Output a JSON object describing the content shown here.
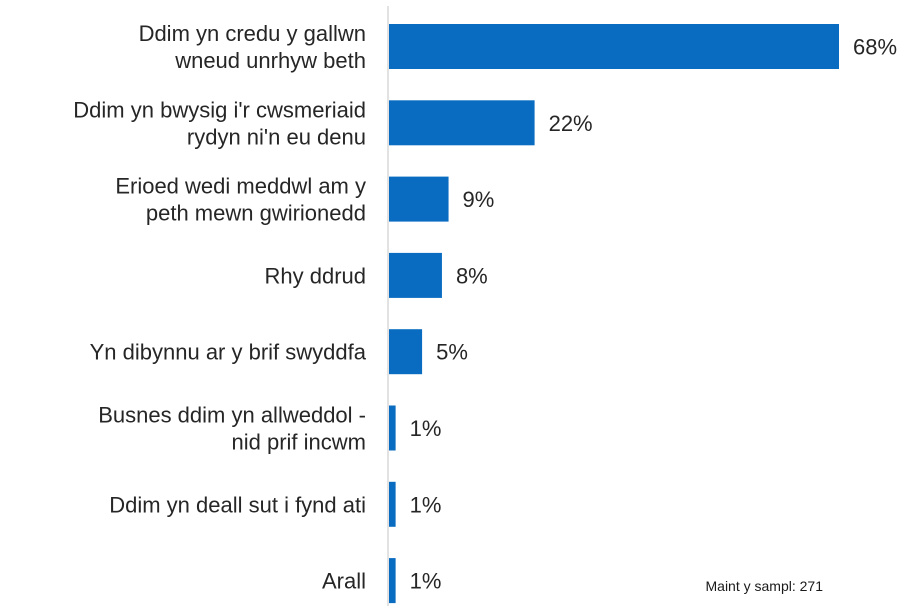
{
  "chart_data": {
    "type": "bar",
    "orientation": "horizontal",
    "categories": [
      [
        "Ddim yn credu y gallwn",
        "wneud unrhyw beth"
      ],
      [
        "Ddim yn bwysig i'r cwsmeriaid",
        "rydyn ni'n eu denu"
      ],
      [
        "Erioed wedi meddwl am y",
        "peth mewn gwirionedd"
      ],
      [
        "Rhy ddrud"
      ],
      [
        "Yn dibynnu ar y brif swyddfa"
      ],
      [
        "Busnes ddim yn allweddol -",
        "nid prif incwm"
      ],
      [
        "Ddim yn deall sut i fynd ati"
      ],
      [
        "Arall"
      ]
    ],
    "values": [
      68,
      22,
      9,
      8,
      5,
      1,
      1,
      1
    ],
    "value_labels": [
      "68%",
      "22%",
      "9%",
      "8%",
      "5%",
      "1%",
      "1%",
      "1%"
    ],
    "xlim": [
      0,
      70
    ],
    "grid": false,
    "bar_color": "#0a6cc1",
    "axis_color": "#d9d9d9"
  },
  "note": "Maint y sampl: 271"
}
